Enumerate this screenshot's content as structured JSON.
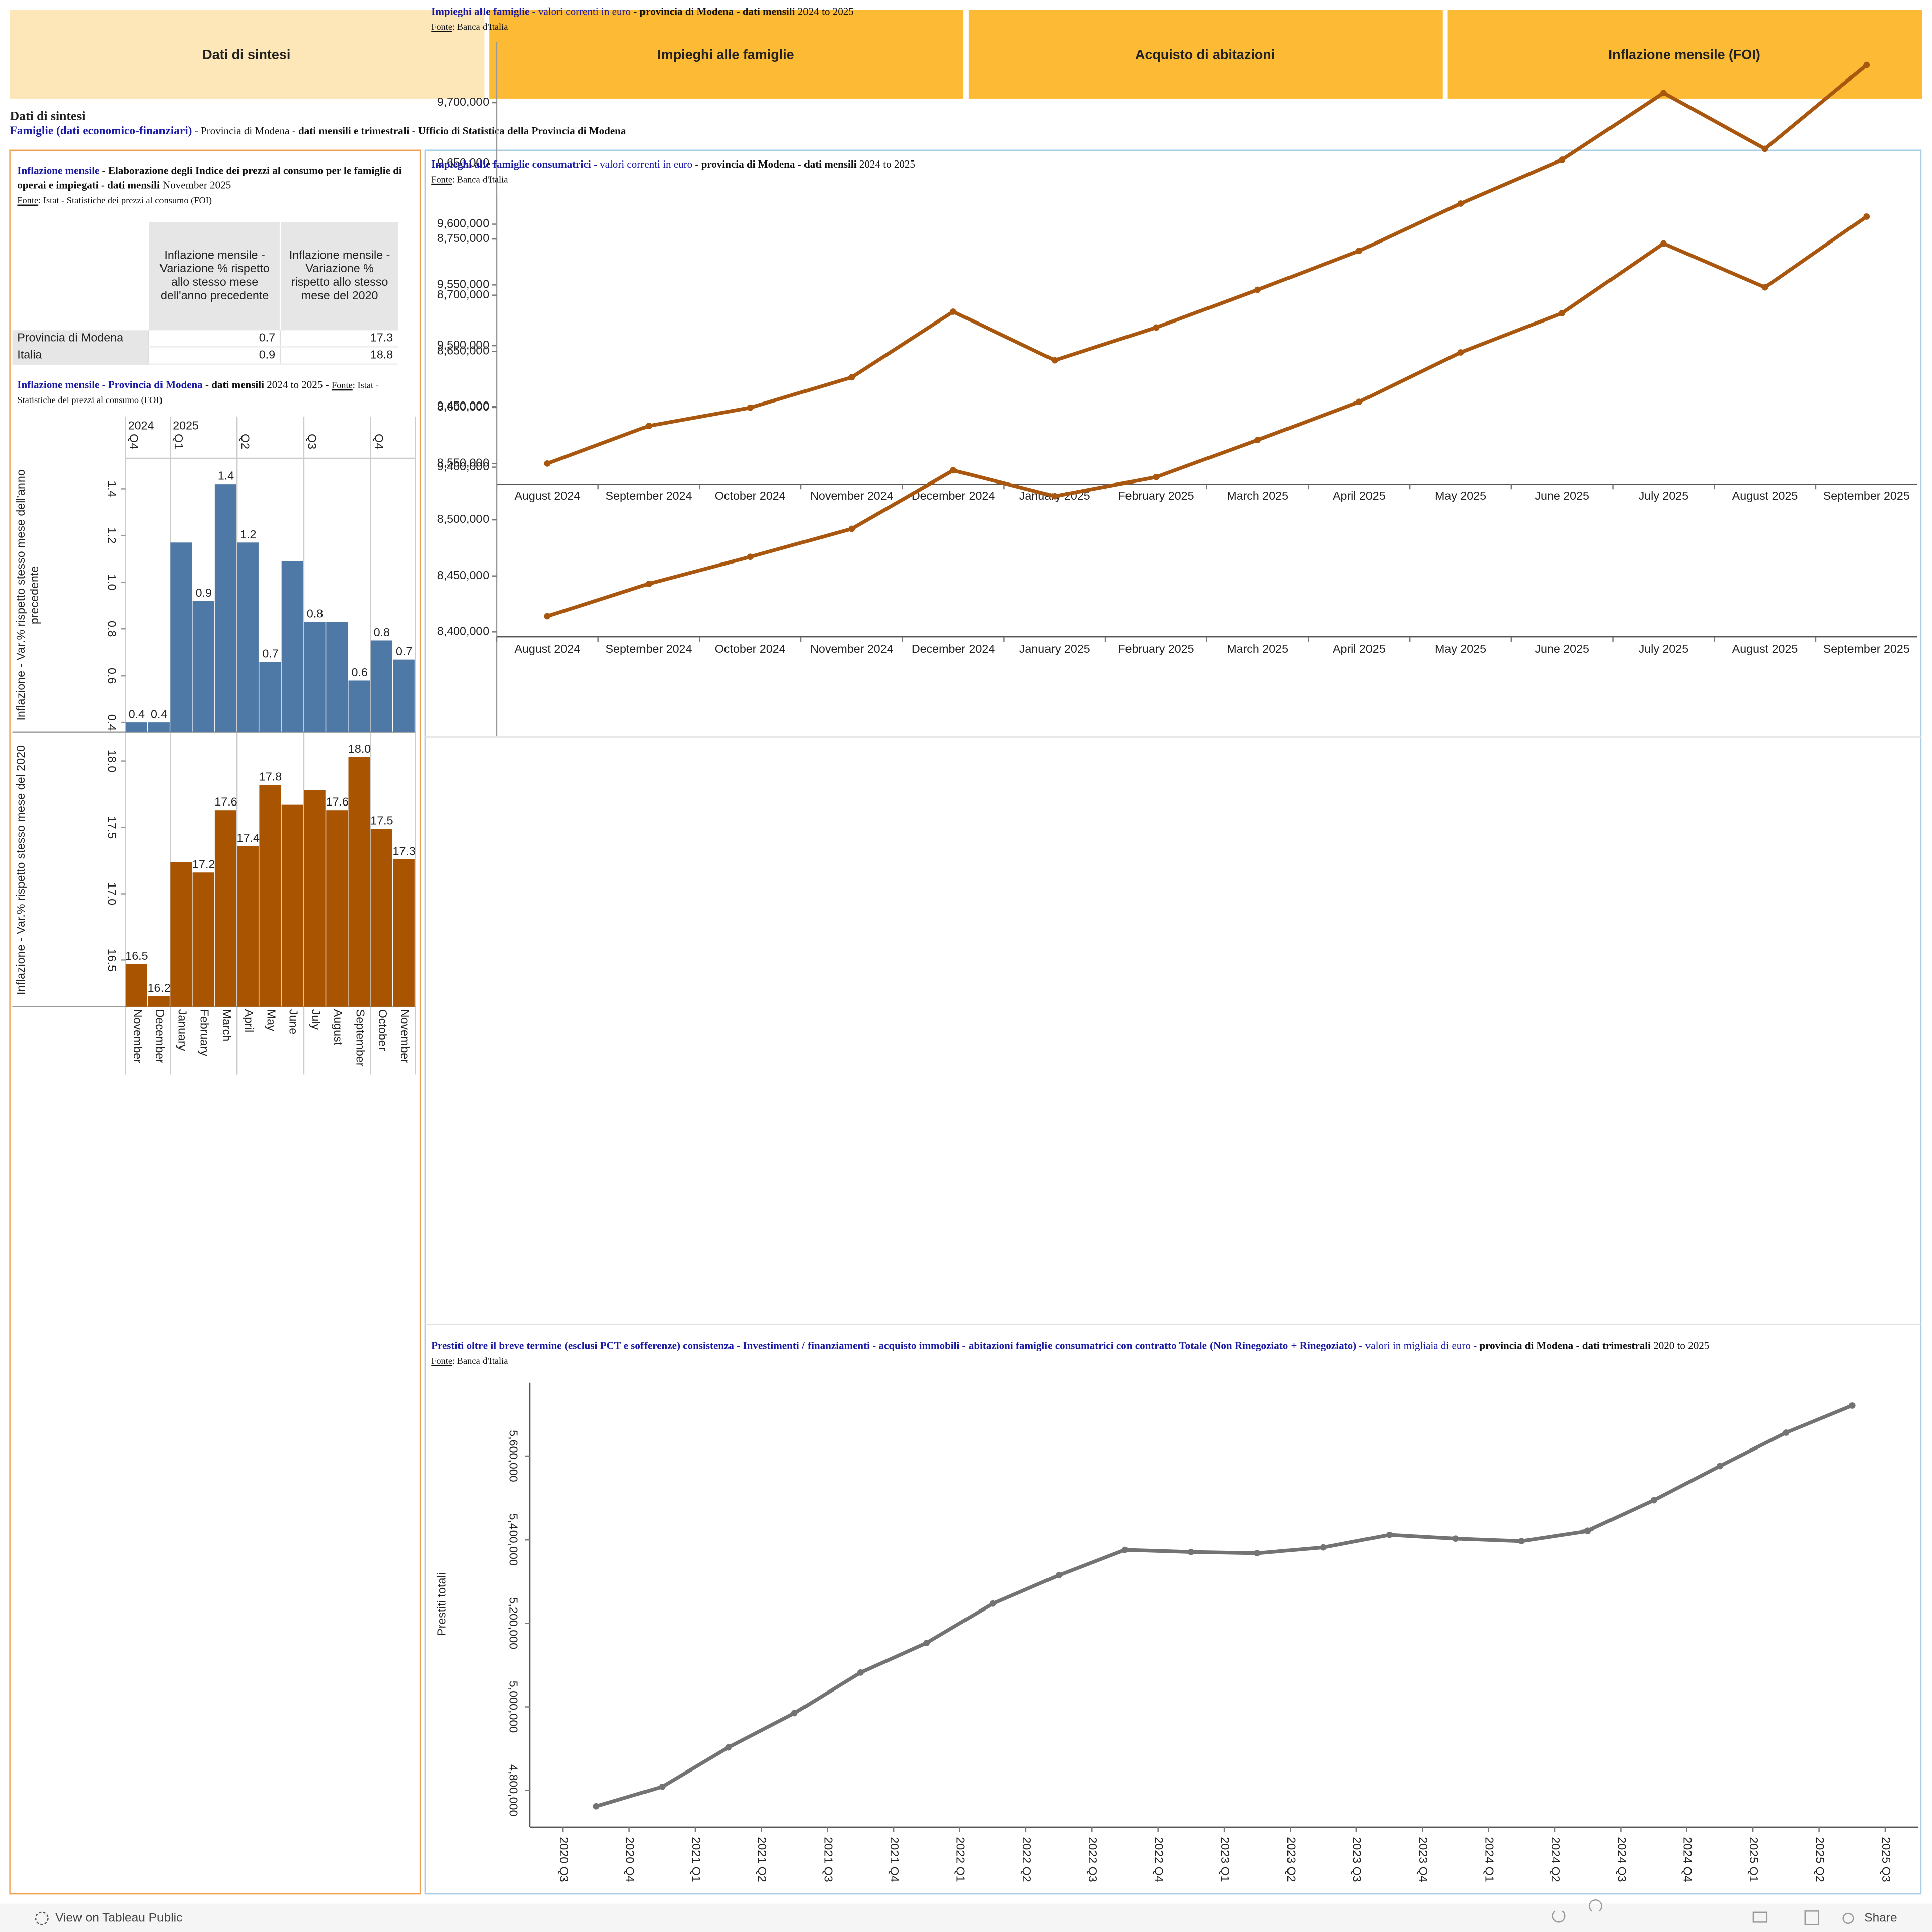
{
  "tabs": [
    "Dati di sintesi",
    "Impieghi alle famiglie",
    "Acquisto di abitazioni",
    "Inflazione mensile (FOI)"
  ],
  "header": {
    "title": "Dati di sintesi",
    "subtitle": [
      {
        "text": "Famiglie (dati economico-finanziari)",
        "style": "link"
      },
      {
        "text": " - Provincia di Modena - ",
        "style": "plain"
      },
      {
        "text": "dati mensili e trimestrali - Ufficio di Statistica della Provincia di Modena",
        "style": "bold"
      }
    ]
  },
  "inflation_table": {
    "title": [
      {
        "text": "Inflazione mensile",
        "style": "blue"
      },
      {
        "text": " - Elaborazione degli Indice dei prezzi al consumo per le famiglie di operai e impiegati - dati mensili",
        "style": "bold"
      },
      {
        "text": " November 2025",
        "style": "plain"
      }
    ],
    "source": [
      {
        "text": "Fonte",
        "style": "underline"
      },
      {
        "text": ": Istat - Statistiche dei prezzi al consumo (FOI)",
        "style": "small"
      }
    ],
    "columns": [
      "Inflazione mensile - Variazione % rispetto allo stesso mese dell'anno precedente",
      "Inflazione mensile - Variazione % rispetto allo stesso mese del 2020"
    ],
    "rows": [
      {
        "label": "Provincia di Modena",
        "values": [
          0.7,
          17.3
        ]
      },
      {
        "label": "Italia",
        "values": [
          0.9,
          18.8
        ]
      }
    ]
  },
  "chart_data": [
    {
      "type": "bar",
      "title": [
        {
          "text": "Inflazione mensile - Provincia di Modena",
          "style": "blue"
        },
        {
          "text": " - dati mensili",
          "style": "bold"
        },
        {
          "text": " 2024 to 2025 - ",
          "style": "plain"
        },
        {
          "text": "Fonte",
          "style": "underline"
        },
        {
          "text": ": Istat - Statistiche dei prezzi al consumo (FOI)",
          "style": "small"
        }
      ],
      "year_headers": [
        "2024",
        "2025"
      ],
      "quarter_headers": [
        "Q4",
        "Q1",
        "Q2",
        "Q3",
        "Q4"
      ],
      "categories": [
        "November",
        "December",
        "January",
        "February",
        "March",
        "April",
        "May",
        "June",
        "July",
        "August",
        "September",
        "October",
        "November"
      ],
      "panels": [
        {
          "axis_label": "Inflazione - Var.% rispetto stesso mese dell'anno precedente",
          "color": "#4e79a7",
          "values": [
            0.4,
            0.4,
            1.17,
            0.92,
            1.42,
            1.17,
            0.66,
            1.09,
            0.83,
            0.83,
            0.58,
            0.75,
            0.67
          ],
          "value_labels": [
            "0.4",
            "0.4",
            null,
            "0.9",
            "1.4",
            "1.2",
            "0.7",
            null,
            "0.8",
            null,
            "0.6",
            "0.8",
            "0.7"
          ],
          "ylim": [
            0.36,
            1.53
          ],
          "yticks": [
            0.4,
            0.6,
            0.8,
            {
              "value": 1,
              "label": "1.0"
            },
            1.2,
            1.4
          ]
        },
        {
          "axis_label": "Inflazione - Var.% rispetto stesso mese del 2020",
          "color": "#a85400",
          "values": [
            16.47,
            16.23,
            17.24,
            17.16,
            17.63,
            17.36,
            17.82,
            17.67,
            17.78,
            17.63,
            18.03,
            17.49,
            17.26
          ],
          "value_labels": [
            "16.5",
            "16.2",
            null,
            "17.2",
            "17.6",
            "17.4",
            "17.8",
            null,
            null,
            "17.6",
            "18.0",
            "17.5",
            "17.3"
          ],
          "ylim": [
            16.15,
            18.21
          ],
          "yticks": [
            16.5,
            {
              "value": 17,
              "label": "17.0"
            },
            17.5,
            {
              "value": 18,
              "label": "18.0"
            }
          ]
        }
      ]
    },
    {
      "type": "line",
      "title": [
        {
          "text": "Impieghi alle famiglie",
          "style": "blue"
        },
        {
          "text": " - valori correnti in euro",
          "style": "blue-plain"
        },
        {
          "text": " - provincia di Modena - dati mensili",
          "style": "bold"
        },
        {
          "text": " 2024 to 2025",
          "style": "plain"
        }
      ],
      "source": [
        {
          "text": "Fonte",
          "style": "underline"
        },
        {
          "text": ": Banca d'Italia",
          "style": "small"
        }
      ],
      "categories": [
        "August 2024",
        "September 2024",
        "October 2024",
        "November 2024",
        "December 2024",
        "January 2025",
        "February 2025",
        "March 2025",
        "April 2025",
        "May 2025",
        "June 2025",
        "July 2025",
        "August 2025",
        "September 2025"
      ],
      "series": [
        {
          "color": "#a9560e",
          "values": [
            9403000,
            9434000,
            9449000,
            9474000,
            9528000,
            9488000,
            9515000,
            9546000,
            9578000,
            9617000,
            9653000,
            9708000,
            9662000,
            9731000
          ]
        }
      ],
      "ylim": [
        9386000,
        9750000
      ],
      "yticks": [
        {
          "value": 9400000,
          "label": "9,400,000"
        },
        {
          "value": 9450000,
          "label": "9,450,000"
        },
        {
          "value": 9500000,
          "label": "9,500,000"
        },
        {
          "value": 9550000,
          "label": "9,550,000"
        },
        {
          "value": 9600000,
          "label": "9,600,000"
        },
        {
          "value": 9650000,
          "label": "9,650,000"
        },
        {
          "value": 9700000,
          "label": "9,700,000"
        }
      ]
    },
    {
      "type": "line",
      "title": [
        {
          "text": "Impieghi alle famiglie consumatrici",
          "style": "blue"
        },
        {
          "text": " - valori correnti in euro",
          "style": "blue-plain"
        },
        {
          "text": " - provincia di Modena - dati mensili",
          "style": "bold"
        },
        {
          "text": " 2024 to 2025",
          "style": "plain"
        }
      ],
      "source": [
        {
          "text": "Fonte",
          "style": "underline"
        },
        {
          "text": ": Banca d'Italia",
          "style": "small"
        }
      ],
      "categories": [
        "August 2024",
        "September 2024",
        "October 2024",
        "November 2024",
        "December 2024",
        "January 2025",
        "February 2025",
        "March 2025",
        "April 2025",
        "May 2025",
        "June 2025",
        "July 2025",
        "August 2025",
        "September 2025"
      ],
      "series": [
        {
          "color": "#a9560e",
          "values": [
            8414000,
            8443000,
            8467000,
            8492000,
            8544000,
            8521000,
            8538000,
            8571000,
            8605000,
            8649000,
            8684000,
            8746000,
            8707000,
            8770000
          ]
        }
      ],
      "ylim": [
        8395600,
        8789500
      ],
      "yticks": [
        {
          "value": 8400000,
          "label": "8,400,000"
        },
        {
          "value": 8450000,
          "label": "8,450,000"
        },
        {
          "value": 8500000,
          "label": "8,500,000"
        },
        {
          "value": 8550000,
          "label": "8,550,000"
        },
        {
          "value": 8600000,
          "label": "8,600,000"
        },
        {
          "value": 8650000,
          "label": "8,650,000"
        },
        {
          "value": 8700000,
          "label": "8,700,000"
        },
        {
          "value": 8750000,
          "label": "8,750,000"
        }
      ]
    },
    {
      "type": "quarterline",
      "title": [
        {
          "text": "Prestiti oltre il breve termine (esclusi PCT e sofferenze) consistenza - Investimenti / finanziamenti - acquisto immobili - abitazioni famiglie consumatrici con contratto Totale (Non Rinegoziato + Rinegoziato)",
          "style": "blue"
        },
        {
          "text": " - valori in migliaia di euro - ",
          "style": "blue-plain"
        },
        {
          "text": "provincia di Modena - dati trimestrali",
          "style": "bold"
        },
        {
          "text": " 2020 to 2025",
          "style": "plain"
        }
      ],
      "source": [
        {
          "text": "Fonte",
          "style": "underline"
        },
        {
          "text": ": Banca d'Italia",
          "style": "small"
        }
      ],
      "y_label": "Prestiti totali",
      "xticks": [
        "2020 Q3",
        "2020 Q4",
        "2021 Q1",
        "2021 Q2",
        "2021 Q3",
        "2021 Q4",
        "2022 Q1",
        "2022 Q2",
        "2022 Q3",
        "2022 Q4",
        "2023 Q1",
        "2023 Q2",
        "2023 Q3",
        "2023 Q4",
        "2024 Q1",
        "2024 Q2",
        "2024 Q3",
        "2024 Q4",
        "2025 Q1",
        "2025 Q2",
        "2025 Q3"
      ],
      "x": [
        "2020 Q3",
        "2020 Q4",
        "2021 Q1",
        "2021 Q2",
        "2021 Q3",
        "2021 Q4",
        "2022 Q1",
        "2022 Q2",
        "2022 Q3",
        "2022 Q4",
        "2023 Q1",
        "2023 Q2",
        "2023 Q3",
        "2023 Q4",
        "2024 Q1",
        "2024 Q2",
        "2024 Q3",
        "2024 Q4",
        "2025 Q1",
        "2025 Q2"
      ],
      "series": [
        {
          "color": "#737373",
          "values": [
            4762000,
            4809000,
            4903000,
            4985000,
            5082000,
            5153000,
            5247000,
            5315000,
            5376000,
            5371000,
            5368000,
            5382000,
            5412000,
            5403000,
            5397000,
            5421000,
            5494000,
            5576000,
            5656000,
            5721000
          ]
        }
      ],
      "ylim": [
        4712000,
        5776000
      ],
      "yticks": [
        {
          "value": 4800000,
          "label": "4,800,000"
        },
        {
          "value": 5000000,
          "label": "5,000,000"
        },
        {
          "value": 5200000,
          "label": "5,200,000"
        },
        {
          "value": 5400000,
          "label": "5,400,000"
        },
        {
          "value": 5600000,
          "label": "5,600,000"
        }
      ]
    }
  ],
  "footer": {
    "tableau": "View on Tableau Public",
    "share": "Share"
  }
}
